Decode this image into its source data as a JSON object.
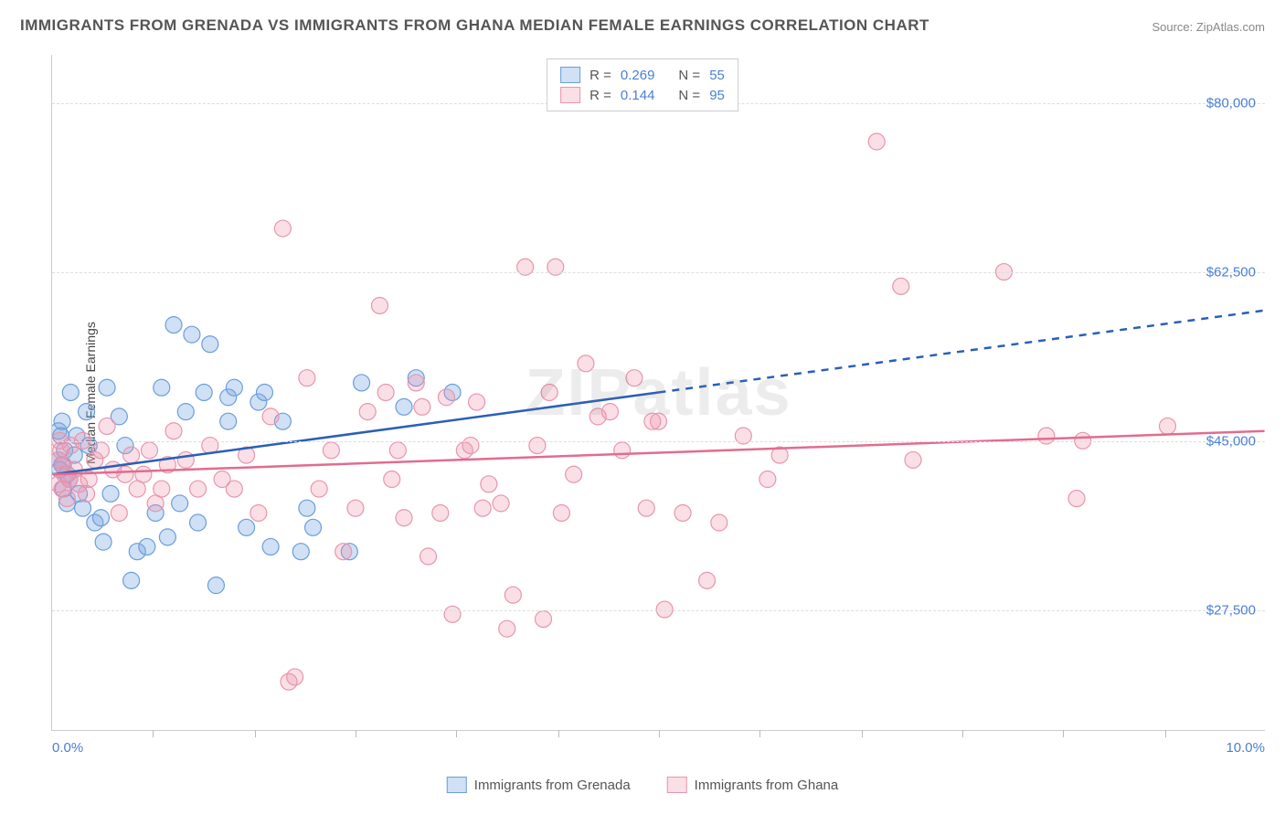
{
  "title": "IMMIGRANTS FROM GRENADA VS IMMIGRANTS FROM GHANA MEDIAN FEMALE EARNINGS CORRELATION CHART",
  "source": "Source: ZipAtlas.com",
  "watermark": "ZIPatlas",
  "y_axis_title": "Median Female Earnings",
  "chart": {
    "type": "scatter",
    "background_color": "#ffffff",
    "grid_color": "#dddddd",
    "axis_color": "#cccccc",
    "tick_label_color": "#4a7fd6",
    "text_color": "#555555",
    "xlim": [
      0.0,
      10.0
    ],
    "ylim": [
      15000,
      85000
    ],
    "x_min_label": "0.0%",
    "x_max_label": "10.0%",
    "y_ticks": [
      27500,
      45000,
      62500,
      80000
    ],
    "y_tick_labels": [
      "$27,500",
      "$45,000",
      "$62,500",
      "$80,000"
    ],
    "x_minor_ticks": [
      0.83,
      1.67,
      2.5,
      3.33,
      4.17,
      5.0,
      5.83,
      6.67,
      7.5,
      8.33,
      9.17
    ],
    "series": [
      {
        "name": "Immigrants from Grenada",
        "key": "grenada",
        "marker_fill": "rgba(120,165,225,0.35)",
        "marker_stroke": "#6a9edb",
        "marker_radius": 9,
        "line_color": "#2a5fb8",
        "line_width": 2.5,
        "dash_after_x": 5.0,
        "R_label": "R =",
        "R_value": "0.269",
        "N_label": "N =",
        "N_value": "55",
        "trend": {
          "x1": 0.0,
          "y1": 41500,
          "x2": 10.0,
          "y2": 58500
        },
        "points": [
          [
            0.05,
            43000
          ],
          [
            0.05,
            46000
          ],
          [
            0.06,
            42000
          ],
          [
            0.07,
            45500
          ],
          [
            0.08,
            42500
          ],
          [
            0.08,
            47000
          ],
          [
            0.09,
            40000
          ],
          [
            0.1,
            44000
          ],
          [
            0.12,
            41500
          ],
          [
            0.12,
            38500
          ],
          [
            0.14,
            41000
          ],
          [
            0.15,
            50000
          ],
          [
            0.18,
            43500
          ],
          [
            0.2,
            45500
          ],
          [
            0.22,
            39500
          ],
          [
            0.25,
            38000
          ],
          [
            0.28,
            48000
          ],
          [
            0.3,
            44500
          ],
          [
            0.35,
            36500
          ],
          [
            0.4,
            37000
          ],
          [
            0.42,
            34500
          ],
          [
            0.45,
            50500
          ],
          [
            0.48,
            39500
          ],
          [
            0.55,
            47500
          ],
          [
            0.6,
            44500
          ],
          [
            0.65,
            30500
          ],
          [
            0.7,
            33500
          ],
          [
            0.78,
            34000
          ],
          [
            0.85,
            37500
          ],
          [
            0.9,
            50500
          ],
          [
            0.95,
            35000
          ],
          [
            1.05,
            38500
          ],
          [
            1.1,
            48000
          ],
          [
            1.15,
            56000
          ],
          [
            1.2,
            36500
          ],
          [
            1.25,
            50000
          ],
          [
            1.3,
            55000
          ],
          [
            1.35,
            30000
          ],
          [
            1.45,
            47000
          ],
          [
            1.45,
            49500
          ],
          [
            1.5,
            50500
          ],
          [
            1.6,
            36000
          ],
          [
            1.7,
            49000
          ],
          [
            1.75,
            50000
          ],
          [
            1.8,
            34000
          ],
          [
            1.9,
            47000
          ],
          [
            2.05,
            33500
          ],
          [
            2.1,
            38000
          ],
          [
            2.15,
            36000
          ],
          [
            2.45,
            33500
          ],
          [
            2.55,
            51000
          ],
          [
            2.9,
            48500
          ],
          [
            3.0,
            51500
          ],
          [
            3.3,
            50000
          ],
          [
            1.0,
            57000
          ]
        ]
      },
      {
        "name": "Immigrants from Ghana",
        "key": "ghana",
        "marker_fill": "rgba(240,150,175,0.30)",
        "marker_stroke": "#e895ac",
        "marker_radius": 9,
        "line_color": "#e26c8f",
        "line_width": 2.5,
        "dash_after_x": null,
        "R_label": "R =",
        "R_value": "0.144",
        "N_label": "N =",
        "N_value": "95",
        "trend": {
          "x1": 0.0,
          "y1": 41500,
          "x2": 10.0,
          "y2": 46000
        },
        "points": [
          [
            0.05,
            40500
          ],
          [
            0.05,
            43000
          ],
          [
            0.06,
            45000
          ],
          [
            0.07,
            44000
          ],
          [
            0.08,
            40000
          ],
          [
            0.09,
            42500
          ],
          [
            0.1,
            41500
          ],
          [
            0.12,
            39000
          ],
          [
            0.14,
            41000
          ],
          [
            0.15,
            44500
          ],
          [
            0.18,
            42000
          ],
          [
            0.22,
            40500
          ],
          [
            0.25,
            45000
          ],
          [
            0.28,
            39500
          ],
          [
            0.3,
            41000
          ],
          [
            0.35,
            43000
          ],
          [
            0.4,
            44000
          ],
          [
            0.45,
            46500
          ],
          [
            0.5,
            42000
          ],
          [
            0.55,
            37500
          ],
          [
            0.6,
            41500
          ],
          [
            0.65,
            43500
          ],
          [
            0.7,
            40000
          ],
          [
            0.75,
            41500
          ],
          [
            0.8,
            44000
          ],
          [
            0.85,
            38500
          ],
          [
            0.9,
            40000
          ],
          [
            0.95,
            42500
          ],
          [
            1.0,
            46000
          ],
          [
            1.1,
            43000
          ],
          [
            1.2,
            40000
          ],
          [
            1.3,
            44500
          ],
          [
            1.4,
            41000
          ],
          [
            1.5,
            40000
          ],
          [
            1.6,
            43500
          ],
          [
            1.7,
            37500
          ],
          [
            1.8,
            47500
          ],
          [
            1.9,
            67000
          ],
          [
            1.95,
            20000
          ],
          [
            2.0,
            20500
          ],
          [
            2.1,
            51500
          ],
          [
            2.2,
            40000
          ],
          [
            2.3,
            44000
          ],
          [
            2.4,
            33500
          ],
          [
            2.5,
            38000
          ],
          [
            2.6,
            48000
          ],
          [
            2.7,
            59000
          ],
          [
            2.75,
            50000
          ],
          [
            2.8,
            41000
          ],
          [
            2.85,
            44000
          ],
          [
            2.9,
            37000
          ],
          [
            3.0,
            51000
          ],
          [
            3.05,
            48500
          ],
          [
            3.1,
            33000
          ],
          [
            3.2,
            37500
          ],
          [
            3.25,
            49500
          ],
          [
            3.3,
            27000
          ],
          [
            3.4,
            44000
          ],
          [
            3.5,
            49000
          ],
          [
            3.55,
            38000
          ],
          [
            3.6,
            40500
          ],
          [
            3.7,
            38500
          ],
          [
            3.75,
            25500
          ],
          [
            3.8,
            29000
          ],
          [
            3.9,
            63000
          ],
          [
            4.0,
            44500
          ],
          [
            4.05,
            26500
          ],
          [
            4.1,
            50000
          ],
          [
            4.15,
            63000
          ],
          [
            4.2,
            37500
          ],
          [
            4.3,
            41500
          ],
          [
            4.4,
            53000
          ],
          [
            4.5,
            47500
          ],
          [
            4.6,
            48000
          ],
          [
            4.7,
            44000
          ],
          [
            4.8,
            51500
          ],
          [
            4.9,
            38000
          ],
          [
            5.0,
            47000
          ],
          [
            5.05,
            27500
          ],
          [
            5.2,
            37500
          ],
          [
            5.4,
            30500
          ],
          [
            5.5,
            36500
          ],
          [
            5.7,
            45500
          ],
          [
            5.9,
            41000
          ],
          [
            6.0,
            43500
          ],
          [
            6.8,
            76000
          ],
          [
            7.0,
            61000
          ],
          [
            7.1,
            43000
          ],
          [
            7.85,
            62500
          ],
          [
            8.2,
            45500
          ],
          [
            8.45,
            39000
          ],
          [
            8.5,
            45000
          ],
          [
            9.2,
            46500
          ],
          [
            3.45,
            44500
          ],
          [
            4.95,
            47000
          ]
        ]
      }
    ]
  },
  "legend_top_swatch_blue": {
    "fill": "rgba(120,165,225,0.35)",
    "stroke": "#6a9edb"
  },
  "legend_top_swatch_pink": {
    "fill": "rgba(240,150,175,0.30)",
    "stroke": "#e895ac"
  }
}
